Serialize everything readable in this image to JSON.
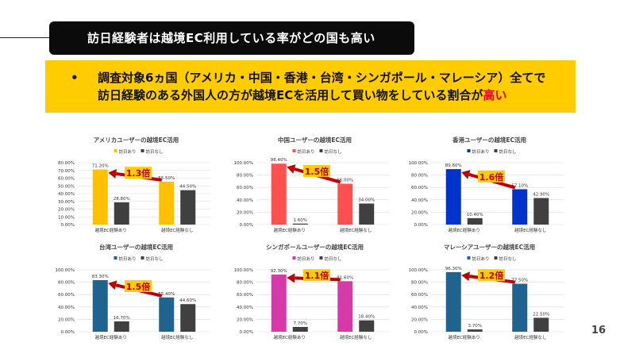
{
  "header": {
    "title": "訪日経験者は越境EC利用している率がどの国も高い"
  },
  "summary": {
    "bullet": "•",
    "line1": "調査対象6ヵ国（アメリカ・中国・香港・台湾・シンガポール・マレーシア）全てで",
    "line2": "訪日経験のある外国人の方が越境ECを活用して買い物をしている割合が",
    "line2_emphasis": "高い"
  },
  "page_number": "16",
  "colors": {
    "gray_bar": "#404040",
    "arrow": "#c00000",
    "badge_bg": "#ffcc00",
    "badge_text": "#c00000"
  },
  "chart_data": [
    {
      "type": "bar",
      "title": "アメリカユーザーの越境EC活用",
      "categories": [
        "越境EC経験あり",
        "越境EC経験なし"
      ],
      "series": [
        {
          "name": "訪日あり",
          "color": "#ffc000",
          "values": [
            71.2,
            55.5
          ],
          "labels": [
            "71.20%",
            "55.50%"
          ]
        },
        {
          "name": "訪日なし",
          "color": "#404040",
          "values": [
            28.8,
            44.5
          ],
          "labels": [
            "28.80%",
            "44.50%"
          ]
        }
      ],
      "ylim": [
        0,
        80
      ],
      "yticks": [
        "0.00%",
        "10.00%",
        "20.00%",
        "30.00%",
        "40.00%",
        "50.00%",
        "60.00%",
        "70.00%",
        "80.00%"
      ],
      "annotation": "1.3倍",
      "grid": true,
      "legend": "top"
    },
    {
      "type": "bar",
      "title": "中国ユーザーの越境EC活用",
      "categories": [
        "越境EC経験あり",
        "越境EC経験なし"
      ],
      "series": [
        {
          "name": "訪日あり",
          "color": "#ff5050",
          "values": [
            98.4,
            66.0
          ],
          "labels": [
            "98.40%",
            "66.00%"
          ]
        },
        {
          "name": "訪日なし",
          "color": "#404040",
          "values": [
            1.6,
            34.0
          ],
          "labels": [
            "1.60%",
            "34.00%"
          ]
        }
      ],
      "ylim": [
        0,
        100
      ],
      "yticks": [
        "0.00%",
        "20.00%",
        "40.00%",
        "60.00%",
        "80.00%",
        "100.00%"
      ],
      "annotation": "1.5倍",
      "grid": true,
      "legend": "top"
    },
    {
      "type": "bar",
      "title": "香港ユーザーの越境EC活用",
      "categories": [
        "越境EC経験あり",
        "越境EC経験なし"
      ],
      "series": [
        {
          "name": "訪日あり",
          "color": "#0033cc",
          "values": [
            89.6,
            57.1
          ],
          "labels": [
            "89.60%",
            "57.10%"
          ]
        },
        {
          "name": "訪日なし",
          "color": "#404040",
          "values": [
            10.4,
            42.9
          ],
          "labels": [
            "10.40%",
            "42.90%"
          ]
        }
      ],
      "ylim": [
        0,
        100
      ],
      "yticks": [
        "0.00%",
        "20.00%",
        "40.00%",
        "60.00%",
        "80.00%",
        "100.00%"
      ],
      "annotation": "1.6倍",
      "grid": true,
      "legend": "top"
    },
    {
      "type": "bar",
      "title": "台湾ユーザーの越境EC活用",
      "categories": [
        "越境EC経験あり",
        "越境EC経験なし"
      ],
      "series": [
        {
          "name": "訪日あり",
          "color": "#1f6391",
          "values": [
            83.3,
            55.4
          ],
          "labels": [
            "83.30%",
            "55.40%"
          ]
        },
        {
          "name": "訪日なし",
          "color": "#404040",
          "values": [
            16.7,
            44.6
          ],
          "labels": [
            "16.70%",
            "44.60%"
          ]
        }
      ],
      "ylim": [
        0,
        100
      ],
      "yticks": [
        "0.00%",
        "20.00%",
        "40.00%",
        "60.00%",
        "80.00%",
        "100.00%"
      ],
      "annotation": "1.5倍",
      "grid": true,
      "legend": "top"
    },
    {
      "type": "bar",
      "title": "シンガポールユーザーの越境EC活用",
      "categories": [
        "越境EC経験あり",
        "越境EC経験なし"
      ],
      "series": [
        {
          "name": "訪日あり",
          "color": "#d63aa8",
          "values": [
            92.3,
            81.6
          ],
          "labels": [
            "92.30%",
            "81.60%"
          ]
        },
        {
          "name": "訪日なし",
          "color": "#404040",
          "values": [
            7.7,
            18.4
          ],
          "labels": [
            "7.70%",
            "18.40%"
          ]
        }
      ],
      "ylim": [
        0,
        100
      ],
      "yticks": [
        "0.00%",
        "20.00%",
        "40.00%",
        "60.00%",
        "80.00%",
        "100.00%"
      ],
      "annotation": "1.1倍",
      "grid": true,
      "legend": "top"
    },
    {
      "type": "bar",
      "title": "マレーシアユーザーの越境EC活用",
      "categories": [
        "越境EC経験あり",
        "越境EC経験なし"
      ],
      "series": [
        {
          "name": "訪日あり",
          "color": "#1f6391",
          "values": [
            96.3,
            77.5
          ],
          "labels": [
            "96.30%",
            "77.50%"
          ]
        },
        {
          "name": "訪日なし",
          "color": "#404040",
          "values": [
            3.7,
            22.5
          ],
          "labels": [
            "3.70%",
            "22.50%"
          ]
        }
      ],
      "ylim": [
        0,
        100
      ],
      "yticks": [
        "0.00%",
        "20.00%",
        "40.00%",
        "60.00%",
        "80.00%",
        "100.00%"
      ],
      "annotation": "1.2倍",
      "grid": true,
      "legend": "top"
    }
  ]
}
